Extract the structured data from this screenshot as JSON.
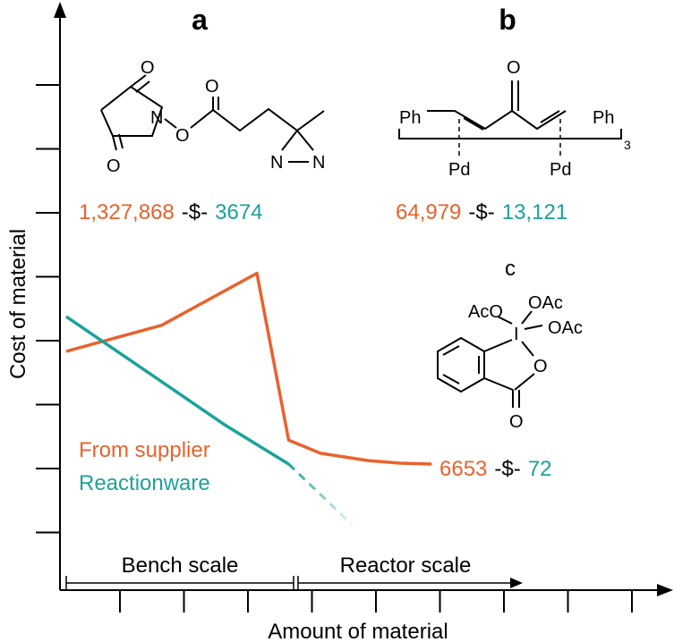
{
  "chart_data": {
    "type": "line",
    "title": "",
    "xlabel": "Amount of material",
    "ylabel": "Cost of material",
    "grid": false,
    "legend_position": "lower-left",
    "regions": [
      "Bench scale",
      "Reactor scale"
    ],
    "series": [
      {
        "name": "From supplier",
        "color": "#e8622c",
        "x": [
          0.0,
          3.0,
          5.0,
          6.0,
          7.0,
          8.0,
          9.5,
          10.5,
          11.5
        ],
        "y": [
          2.6,
          3.2,
          4.0,
          4.4,
          0.55,
          0.25,
          0.08,
          0.02,
          0.0
        ],
        "note": "supplier curve"
      },
      {
        "name": "Reactionware",
        "color": "#1aa39a",
        "x": [
          0.0,
          2.5,
          5.0,
          7.0
        ],
        "y": [
          3.4,
          2.15,
          0.9,
          0.0
        ],
        "extrapolated_from_x": 7.0,
        "extrapolated_to_x": 9.0,
        "extrapolated_to_y": -1.4
      }
    ],
    "compounds": [
      {
        "label": "a",
        "supplier_cost": "1,327,868",
        "separator": "-$-",
        "reactionware_cost": "3674"
      },
      {
        "label": "b",
        "supplier_cost": "64,979",
        "separator": "-$-",
        "reactionware_cost": "13,121"
      },
      {
        "label": "c",
        "supplier_cost": "6653",
        "separator": "-$-",
        "reactionware_cost": "72"
      }
    ]
  },
  "structures": {
    "a": {
      "atoms": {
        "o1": "O",
        "o2": "O",
        "n": "N",
        "o_link": "O",
        "o3": "O",
        "n_az1": "N",
        "n_az2": "N"
      }
    },
    "b": {
      "atoms": {
        "o": "O",
        "ph1": "Ph",
        "ph2": "Ph",
        "pd1": "Pd",
        "pd2": "Pd",
        "sub": "3"
      }
    },
    "c": {
      "atoms": {
        "aco": "AcO",
        "oac1": "OAc",
        "oac2": "OAc",
        "i": "I",
        "o_ring": "O",
        "o_carb": "O"
      }
    }
  },
  "colors": {
    "supplier": "#e8622c",
    "reactionware": "#1aa39a",
    "axis": "#000000",
    "text": "#000000"
  }
}
